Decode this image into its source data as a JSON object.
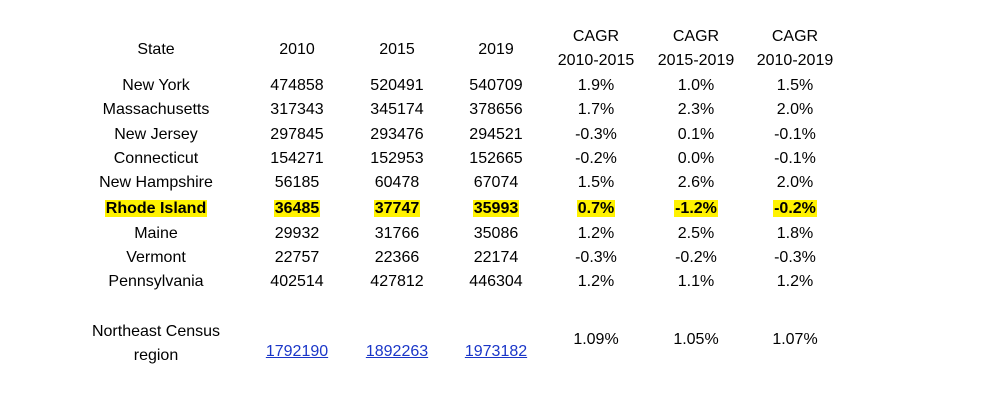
{
  "table": {
    "headers": {
      "state": "State",
      "y2010": "2010",
      "y2015": "2015",
      "y2019": "2019",
      "cagr1_line1": "CAGR",
      "cagr1_line2": "2010-2015",
      "cagr2_line1": "CAGR",
      "cagr2_line2": "2015-2019",
      "cagr3_line1": "CAGR",
      "cagr3_line2": "2010-2019"
    },
    "rows": [
      {
        "state": "New York",
        "y2010": "474858",
        "y2015": "520491",
        "y2019": "540709",
        "c1": "1.9%",
        "c2": "1.0%",
        "c3": "1.5%"
      },
      {
        "state": "Massachusetts",
        "y2010": "317343",
        "y2015": "345174",
        "y2019": "378656",
        "c1": "1.7%",
        "c2": "2.3%",
        "c3": "2.0%"
      },
      {
        "state": "New Jersey",
        "y2010": "297845",
        "y2015": "293476",
        "y2019": "294521",
        "c1": "-0.3%",
        "c2": "0.1%",
        "c3": "-0.1%"
      },
      {
        "state": "Connecticut",
        "y2010": "154271",
        "y2015": "152953",
        "y2019": "152665",
        "c1": "-0.2%",
        "c2": "0.0%",
        "c3": "-0.1%"
      },
      {
        "state": "New Hampshire",
        "y2010": "56185",
        "y2015": "60478",
        "y2019": "67074",
        "c1": "1.5%",
        "c2": "2.6%",
        "c3": "2.0%"
      },
      {
        "state": "Rhode Island",
        "y2010": "36485",
        "y2015": "37747",
        "y2019": "35993",
        "c1": "0.7%",
        "c2": "-1.2%",
        "c3": "-0.2%"
      },
      {
        "state": "Maine",
        "y2010": "29932",
        "y2015": "31766",
        "y2019": "35086",
        "c1": "1.2%",
        "c2": "2.5%",
        "c3": "1.8%"
      },
      {
        "state": "Vermont",
        "y2010": "22757",
        "y2015": "22366",
        "y2019": "22174",
        "c1": "-0.3%",
        "c2": "-0.2%",
        "c3": "-0.3%"
      },
      {
        "state": "Pennsylvania",
        "y2010": "402514",
        "y2015": "427812",
        "y2019": "446304",
        "c1": "1.2%",
        "c2": "1.1%",
        "c3": "1.2%"
      }
    ],
    "total": {
      "label_line1": "Northeast Census",
      "label_line2": "region",
      "y2010": "1792190",
      "y2015": "1892263",
      "y2019": "1973182",
      "c1": "1.09%",
      "c2": "1.05%",
      "c3": "1.07%"
    }
  },
  "colors": {
    "highlight": "#fff200",
    "link": "#1a36c8",
    "text": "#000000",
    "background": "#ffffff"
  }
}
